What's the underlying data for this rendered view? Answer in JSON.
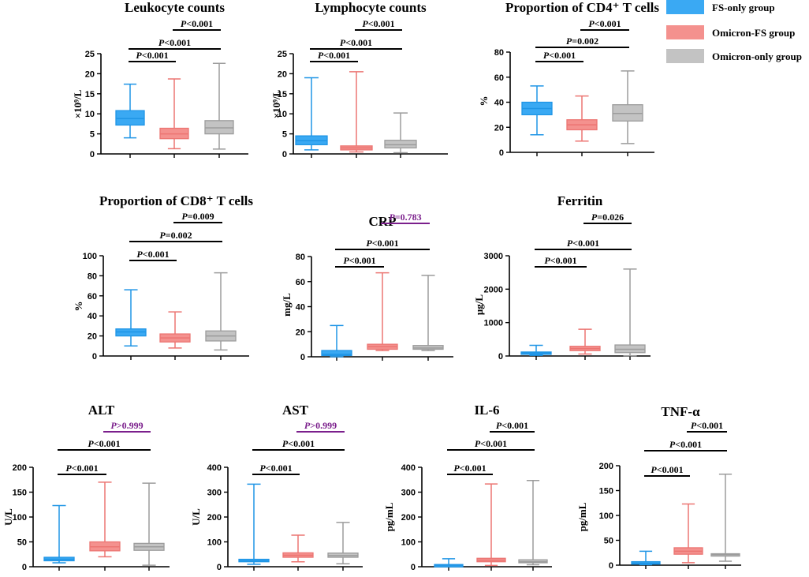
{
  "groups": [
    "FS-only group",
    "Omicron-FS group",
    "Omicron-only group"
  ],
  "colors": {
    "fill": [
      "#3aa9f3",
      "#f4918e",
      "#c3c3c3"
    ],
    "stroke": [
      "#1f95e6",
      "#ec7572",
      "#9c9c9c"
    ],
    "axis": "#000000",
    "sig_black": "#000000",
    "sig_purple": "#7b1f8c"
  },
  "legend": {
    "position": "top-right",
    "items": [
      {
        "label": "FS-only group",
        "color": "#3aa9f3"
      },
      {
        "label": "Omicron-FS group",
        "color": "#f4918e"
      },
      {
        "label": "Omicron-only group",
        "color": "#c3c3c3"
      }
    ]
  },
  "chart_data": [
    {
      "type": "boxplot",
      "title": "Leukocyte counts",
      "ylabel": "×10⁹/L",
      "ylim": [
        0,
        25
      ],
      "yticks": [
        0,
        5,
        10,
        15,
        20,
        25
      ],
      "boxes": [
        {
          "min": 4,
          "q1": 7.2,
          "median": 8.8,
          "q3": 10.8,
          "max": 17.4
        },
        {
          "min": 1.3,
          "q1": 3.8,
          "median": 5.0,
          "q3": 6.4,
          "max": 18.7
        },
        {
          "min": 1.2,
          "q1": 5.0,
          "median": 6.5,
          "q3": 8.3,
          "max": 22.6
        }
      ],
      "comparisons": [
        {
          "pair": [
            0,
            1
          ],
          "label": "P<0.001",
          "italic": "P",
          "rest": "<0.001",
          "purple": false
        },
        {
          "pair": [
            0,
            2
          ],
          "label": "P<0.001",
          "italic": "P",
          "rest": "<0.001",
          "purple": false
        },
        {
          "pair": [
            1,
            2
          ],
          "label": "P<0.001",
          "italic": "P",
          "rest": "<0.001",
          "purple": false
        }
      ]
    },
    {
      "type": "boxplot",
      "title": "Lymphocyte counts",
      "ylabel": "×10⁹/L",
      "ylim": [
        0,
        25
      ],
      "yticks": [
        0,
        5,
        10,
        15,
        20,
        25
      ],
      "boxes": [
        {
          "min": 1.0,
          "q1": 2.3,
          "median": 3.3,
          "q3": 4.5,
          "max": 19.0
        },
        {
          "min": 0.5,
          "q1": 1.0,
          "median": 1.5,
          "q3": 2.0,
          "max": 20.5
        },
        {
          "min": 0.3,
          "q1": 1.5,
          "median": 2.3,
          "q3": 3.4,
          "max": 10.2
        }
      ],
      "comparisons": [
        {
          "pair": [
            0,
            1
          ],
          "label": "P<0.001",
          "italic": "P",
          "rest": "<0.001",
          "purple": false
        },
        {
          "pair": [
            0,
            2
          ],
          "label": "P<0.001",
          "italic": "P",
          "rest": "<0.001",
          "purple": false
        },
        {
          "pair": [
            1,
            2
          ],
          "label": "P<0.001",
          "italic": "P",
          "rest": "<0.001",
          "purple": false
        }
      ]
    },
    {
      "type": "boxplot",
      "title": "Proportion of CD4⁺ T cells",
      "ylabel": "%",
      "ylim": [
        0,
        80
      ],
      "yticks": [
        0,
        20,
        40,
        60,
        80
      ],
      "boxes": [
        {
          "min": 14,
          "q1": 30,
          "median": 35,
          "q3": 40,
          "max": 53
        },
        {
          "min": 9,
          "q1": 18,
          "median": 22,
          "q3": 26,
          "max": 45
        },
        {
          "min": 7,
          "q1": 25,
          "median": 31,
          "q3": 38,
          "max": 65
        }
      ],
      "comparisons": [
        {
          "pair": [
            0,
            1
          ],
          "label": "P<0.001",
          "italic": "P",
          "rest": "<0.001",
          "purple": false
        },
        {
          "pair": [
            0,
            2
          ],
          "label": "P=0.002",
          "italic": "P",
          "rest": "=0.002",
          "purple": false
        },
        {
          "pair": [
            1,
            2
          ],
          "label": "P<0.001",
          "italic": "P",
          "rest": "<0.001",
          "purple": false
        }
      ]
    },
    {
      "type": "boxplot",
      "title": "Proportion of CD8⁺ T cells",
      "ylabel": "%",
      "ylim": [
        0,
        100
      ],
      "yticks": [
        0,
        20,
        40,
        60,
        80,
        100
      ],
      "boxes": [
        {
          "min": 10,
          "q1": 20,
          "median": 24,
          "q3": 27,
          "max": 66
        },
        {
          "min": 8,
          "q1": 14,
          "median": 18,
          "q3": 22,
          "max": 44
        },
        {
          "min": 6,
          "q1": 15,
          "median": 20,
          "q3": 25,
          "max": 83
        }
      ],
      "comparisons": [
        {
          "pair": [
            0,
            1
          ],
          "label": "P<0.001",
          "italic": "P",
          "rest": "<0.001",
          "purple": false
        },
        {
          "pair": [
            0,
            2
          ],
          "label": "P=0.002",
          "italic": "P",
          "rest": "=0.002",
          "purple": false
        },
        {
          "pair": [
            1,
            2
          ],
          "label": "P=0.009",
          "italic": "P",
          "rest": "=0.009",
          "purple": false
        }
      ]
    },
    {
      "type": "boxplot",
      "title": "CRP",
      "ylabel": "mg/L",
      "ylim": [
        0,
        80
      ],
      "yticks": [
        0,
        20,
        40,
        60,
        80
      ],
      "boxes": [
        {
          "min": 0,
          "q1": 1,
          "median": 2,
          "q3": 5,
          "max": 25
        },
        {
          "min": 5,
          "q1": 6,
          "median": 8,
          "q3": 10,
          "max": 67
        },
        {
          "min": 5,
          "q1": 6,
          "median": 7,
          "q3": 9,
          "max": 65
        }
      ],
      "comparisons": [
        {
          "pair": [
            0,
            1
          ],
          "label": "P<0.001",
          "italic": "P",
          "rest": "<0.001",
          "purple": false
        },
        {
          "pair": [
            0,
            2
          ],
          "label": "P<0.001",
          "italic": "P",
          "rest": "<0.001",
          "purple": false
        },
        {
          "pair": [
            1,
            2
          ],
          "label": "P=0.783",
          "italic": "P",
          "rest": "=0.783",
          "purple": true
        }
      ]
    },
    {
      "type": "boxplot",
      "title": "Ferritin",
      "ylabel": "μg/L",
      "ylim": [
        0,
        3000
      ],
      "yticks": [
        0,
        1000,
        2000,
        3000
      ],
      "boxes": [
        {
          "min": 20,
          "q1": 60,
          "median": 90,
          "q3": 120,
          "max": 320
        },
        {
          "min": 60,
          "q1": 160,
          "median": 220,
          "q3": 290,
          "max": 800
        },
        {
          "min": 10,
          "q1": 100,
          "median": 200,
          "q3": 330,
          "max": 2600
        }
      ],
      "comparisons": [
        {
          "pair": [
            0,
            1
          ],
          "label": "P<0.001",
          "italic": "P",
          "rest": "<0.001",
          "purple": false
        },
        {
          "pair": [
            0,
            2
          ],
          "label": "P<0.001",
          "italic": "P",
          "rest": "<0.001",
          "purple": false
        },
        {
          "pair": [
            1,
            2
          ],
          "label": "P=0.026",
          "italic": "P",
          "rest": "=0.026",
          "purple": false
        }
      ]
    },
    {
      "type": "boxplot",
      "title": "ALT",
      "ylabel": "U/L",
      "ylim": [
        0,
        200
      ],
      "yticks": [
        0,
        50,
        100,
        150,
        200
      ],
      "boxes": [
        {
          "min": 8,
          "q1": 12,
          "median": 15,
          "q3": 19,
          "max": 123
        },
        {
          "min": 20,
          "q1": 32,
          "median": 40,
          "q3": 50,
          "max": 170
        },
        {
          "min": 3,
          "q1": 33,
          "median": 40,
          "q3": 47,
          "max": 168
        }
      ],
      "comparisons": [
        {
          "pair": [
            0,
            1
          ],
          "label": "P<0.001",
          "italic": "P",
          "rest": "<0.001",
          "purple": false
        },
        {
          "pair": [
            0,
            2
          ],
          "label": "P<0.001",
          "italic": "P",
          "rest": "<0.001",
          "purple": false
        },
        {
          "pair": [
            1,
            2
          ],
          "label": "P>0.999",
          "italic": "P",
          "rest": ">0.999",
          "purple": true
        }
      ]
    },
    {
      "type": "boxplot",
      "title": "AST",
      "ylabel": "U/L",
      "ylim": [
        0,
        400
      ],
      "yticks": [
        0,
        100,
        200,
        300,
        400
      ],
      "boxes": [
        {
          "min": 10,
          "q1": 20,
          "median": 24,
          "q3": 30,
          "max": 332
        },
        {
          "min": 20,
          "q1": 38,
          "median": 46,
          "q3": 56,
          "max": 127
        },
        {
          "min": 12,
          "q1": 38,
          "median": 45,
          "q3": 55,
          "max": 178
        }
      ],
      "comparisons": [
        {
          "pair": [
            0,
            1
          ],
          "label": "P<0.001",
          "italic": "P",
          "rest": "<0.001",
          "purple": false
        },
        {
          "pair": [
            0,
            2
          ],
          "label": "P<0.001",
          "italic": "P",
          "rest": "<0.001",
          "purple": false
        },
        {
          "pair": [
            1,
            2
          ],
          "label": "P>0.999",
          "italic": "P",
          "rest": ">0.999",
          "purple": true
        }
      ]
    },
    {
      "type": "boxplot",
      "title": "IL-6",
      "ylabel": "pg/mL",
      "ylim": [
        0,
        400
      ],
      "yticks": [
        0,
        100,
        200,
        300,
        400
      ],
      "boxes": [
        {
          "min": 2,
          "q1": 4,
          "median": 6,
          "q3": 9,
          "max": 32
        },
        {
          "min": 5,
          "q1": 20,
          "median": 26,
          "q3": 34,
          "max": 333
        },
        {
          "min": 8,
          "q1": 16,
          "median": 20,
          "q3": 28,
          "max": 347
        }
      ],
      "comparisons": [
        {
          "pair": [
            0,
            1
          ],
          "label": "P<0.001",
          "italic": "P",
          "rest": "<0.001",
          "purple": false
        },
        {
          "pair": [
            0,
            2
          ],
          "label": "P<0.001",
          "italic": "P",
          "rest": "<0.001",
          "purple": false
        },
        {
          "pair": [
            1,
            2
          ],
          "label": "P<0.001",
          "italic": "P",
          "rest": "<0.001",
          "purple": false
        }
      ]
    },
    {
      "type": "boxplot",
      "title": "TNF-α",
      "ylabel": "pg/mL",
      "ylim": [
        0,
        200
      ],
      "yticks": [
        0,
        50,
        100,
        150,
        200
      ],
      "boxes": [
        {
          "min": 1,
          "q1": 2,
          "median": 4,
          "q3": 7,
          "max": 28
        },
        {
          "min": 5,
          "q1": 22,
          "median": 28,
          "q3": 35,
          "max": 123
        },
        {
          "min": 8,
          "q1": 19,
          "median": 21,
          "q3": 23,
          "max": 183
        }
      ],
      "comparisons": [
        {
          "pair": [
            0,
            1
          ],
          "label": "P<0.001",
          "italic": "P",
          "rest": "<0.001",
          "purple": false
        },
        {
          "pair": [
            0,
            2
          ],
          "label": "P<0.001",
          "italic": "P",
          "rest": "<0.001",
          "purple": false
        },
        {
          "pair": [
            1,
            2
          ],
          "label": "P<0.001",
          "italic": "P",
          "rest": "<0.001",
          "purple": false
        }
      ]
    }
  ]
}
